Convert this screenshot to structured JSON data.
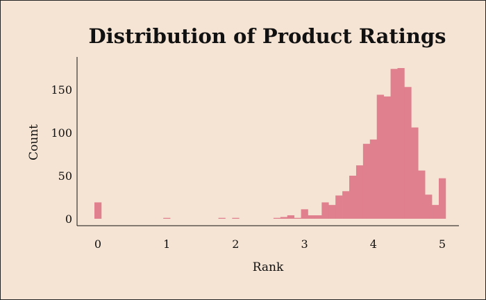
{
  "chart_data": {
    "type": "bar",
    "title": "Distribution of Product Ratings",
    "xlabel": "Rank",
    "ylabel": "Count",
    "xlim": [
      0,
      5
    ],
    "ylim": [
      0,
      180
    ],
    "x_ticks": [
      "0",
      "1",
      "2",
      "3",
      "4",
      "5"
    ],
    "y_ticks": [
      "0",
      "50",
      "100",
      "150"
    ],
    "bar_color": "#e07f8e",
    "grid": false,
    "bins": [
      {
        "x0": 0.0,
        "x1": 0.1,
        "count": 19
      },
      {
        "x0": 1.0,
        "x1": 1.1,
        "count": 1
      },
      {
        "x0": 1.8,
        "x1": 1.9,
        "count": 1
      },
      {
        "x0": 2.0,
        "x1": 2.1,
        "count": 1
      },
      {
        "x0": 2.6,
        "x1": 2.7,
        "count": 1
      },
      {
        "x0": 2.7,
        "x1": 2.8,
        "count": 2
      },
      {
        "x0": 2.8,
        "x1": 2.9,
        "count": 4
      },
      {
        "x0": 2.9,
        "x1": 3.0,
        "count": 1
      },
      {
        "x0": 3.0,
        "x1": 3.1,
        "count": 11
      },
      {
        "x0": 3.1,
        "x1": 3.2,
        "count": 4
      },
      {
        "x0": 3.2,
        "x1": 3.3,
        "count": 4
      },
      {
        "x0": 3.3,
        "x1": 3.4,
        "count": 19
      },
      {
        "x0": 3.4,
        "x1": 3.5,
        "count": 16
      },
      {
        "x0": 3.5,
        "x1": 3.6,
        "count": 27
      },
      {
        "x0": 3.6,
        "x1": 3.7,
        "count": 32
      },
      {
        "x0": 3.7,
        "x1": 3.8,
        "count": 50
      },
      {
        "x0": 3.8,
        "x1": 3.9,
        "count": 62
      },
      {
        "x0": 3.9,
        "x1": 4.0,
        "count": 87
      },
      {
        "x0": 4.0,
        "x1": 4.1,
        "count": 92
      },
      {
        "x0": 4.1,
        "x1": 4.2,
        "count": 144
      },
      {
        "x0": 4.2,
        "x1": 4.3,
        "count": 142
      },
      {
        "x0": 4.3,
        "x1": 4.4,
        "count": 174
      },
      {
        "x0": 4.4,
        "x1": 4.5,
        "count": 175
      },
      {
        "x0": 4.5,
        "x1": 4.6,
        "count": 153
      },
      {
        "x0": 4.6,
        "x1": 4.7,
        "count": 106
      },
      {
        "x0": 4.7,
        "x1": 4.8,
        "count": 56
      },
      {
        "x0": 4.8,
        "x1": 4.9,
        "count": 28
      },
      {
        "x0": 4.9,
        "x1": 5.0,
        "count": 16
      },
      {
        "x0": 5.0,
        "x1": 5.1,
        "count": 47
      }
    ]
  }
}
